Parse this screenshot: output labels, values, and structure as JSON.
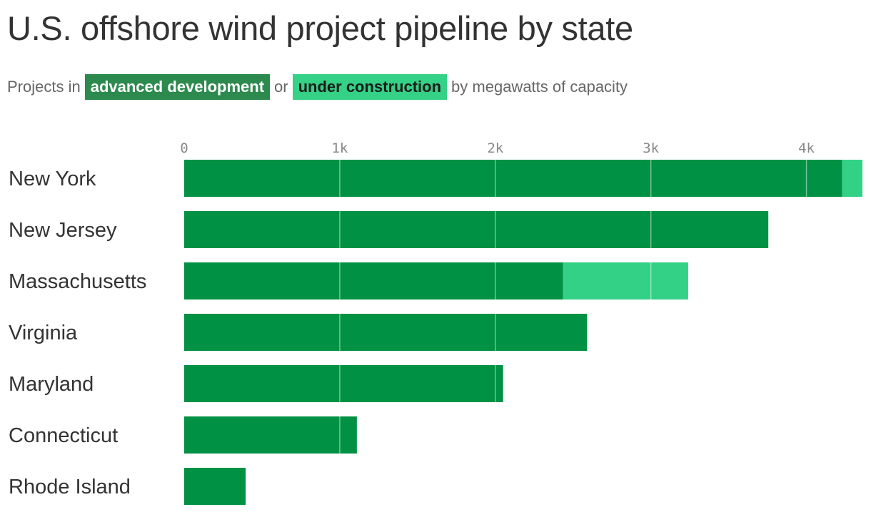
{
  "chart_data": {
    "type": "bar",
    "orientation": "horizontal",
    "stacked": true,
    "title": "U.S. offshore wind project pipeline by state",
    "subtitle": {
      "prefix": "Projects in",
      "series_a_label": "advanced development",
      "middle": "or",
      "series_b_label": "under construction",
      "suffix": "by megawatts of capacity"
    },
    "categories": [
      "New York",
      "New Jersey",
      "Massachusetts",
      "Virginia",
      "Maryland",
      "Connecticut",
      "Rhode Island"
    ],
    "series": [
      {
        "name": "advanced development",
        "color": "#009144",
        "values": [
          4230,
          3755,
          2435,
          2590,
          2050,
          1110,
          395
        ]
      },
      {
        "name": "under construction",
        "color": "#33d186",
        "values": [
          130,
          0,
          805,
          0,
          0,
          0,
          0
        ]
      }
    ],
    "xlim": [
      0,
      4360
    ],
    "xticks": [
      0,
      1000,
      2000,
      3000,
      4000
    ],
    "xtick_labels": [
      "0",
      "1k",
      "2k",
      "3k",
      "4k"
    ],
    "grid": true,
    "legend": "inline-subtitle"
  }
}
